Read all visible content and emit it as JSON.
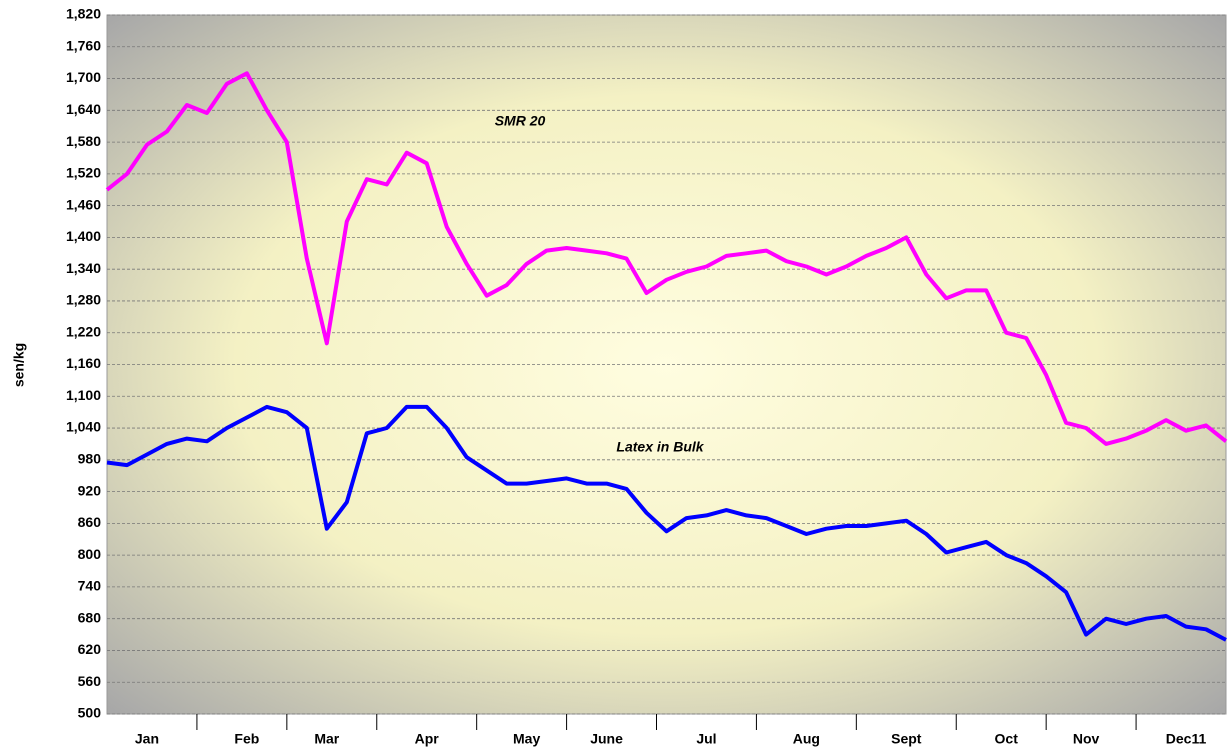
{
  "chart_data": {
    "type": "line",
    "y_label": "sen/kg",
    "annotations": [
      "SMR 20",
      "Latex in Bulk"
    ],
    "categories": [
      null,
      null,
      "Jan",
      null,
      null,
      null,
      null,
      "Feb",
      null,
      null,
      null,
      "Mar",
      null,
      null,
      null,
      null,
      "Apr",
      null,
      null,
      null,
      null,
      "May",
      null,
      null,
      null,
      "June",
      null,
      null,
      null,
      null,
      "Jul",
      null,
      null,
      null,
      null,
      "Aug",
      null,
      null,
      null,
      null,
      "Sept",
      null,
      null,
      null,
      null,
      "Oct",
      null,
      null,
      null,
      "Nov",
      null,
      null,
      null,
      null,
      "Dec11",
      null,
      null
    ],
    "highlight_color": "#ff0000",
    "series": [
      {
        "name": "SMR 20",
        "color": "#ff00ff",
        "values": [
          1490,
          1520,
          1575,
          1600,
          1650,
          1635,
          1690,
          1710,
          1640,
          1580,
          1360,
          1200,
          1430,
          1510,
          1500,
          1560,
          1540,
          1420,
          1350,
          1290,
          1310,
          1350,
          1375,
          1380,
          1375,
          1370,
          1360,
          1295,
          1320,
          1335,
          1345,
          1365,
          1370,
          1375,
          1355,
          1345,
          1330,
          1345,
          1365,
          1380,
          1400,
          1330,
          1285,
          1300,
          1300,
          1220,
          1210,
          1140,
          1050,
          1040,
          1010,
          1020,
          1035,
          1055,
          1035,
          1045,
          1015
        ]
      },
      {
        "name": "Latex in Bulk",
        "color": "#0000ff",
        "values": [
          975,
          970,
          990,
          1010,
          1020,
          1015,
          1040,
          1060,
          1080,
          1070,
          1040,
          850,
          900,
          1030,
          1040,
          1080,
          1080,
          1040,
          985,
          960,
          935,
          935,
          940,
          945,
          935,
          935,
          925,
          880,
          845,
          870,
          875,
          885,
          875,
          870,
          855,
          840,
          850,
          855,
          855,
          860,
          865,
          840,
          805,
          815,
          825,
          800,
          785,
          760,
          730,
          650,
          680,
          670,
          680,
          685,
          665,
          660,
          640
        ]
      }
    ],
    "ylim": [
      500,
      1820
    ],
    "yticks": [
      500,
      560,
      620,
      680,
      740,
      800,
      860,
      920,
      980,
      {
        "value": 1040,
        "label": "1,040"
      },
      {
        "value": 1100,
        "label": "1,100"
      },
      {
        "value": 1160,
        "label": "1,160"
      },
      {
        "value": 1220,
        "label": "1,220"
      },
      {
        "value": 1280,
        "label": "1,280"
      },
      {
        "value": 1340,
        "label": "1,340"
      },
      {
        "value": 1400,
        "label": "1,400"
      },
      {
        "value": 1460,
        "label": "1,460"
      },
      {
        "value": 1520,
        "label": "1,520"
      },
      {
        "value": 1580,
        "label": "1,580"
      },
      {
        "value": 1640,
        "label": "1,640"
      },
      {
        "value": 1700,
        "label": "1,700"
      },
      {
        "value": 1760,
        "label": "1,760"
      },
      {
        "value": 1820,
        "label": "1,820"
      }
    ],
    "grid": true
  }
}
